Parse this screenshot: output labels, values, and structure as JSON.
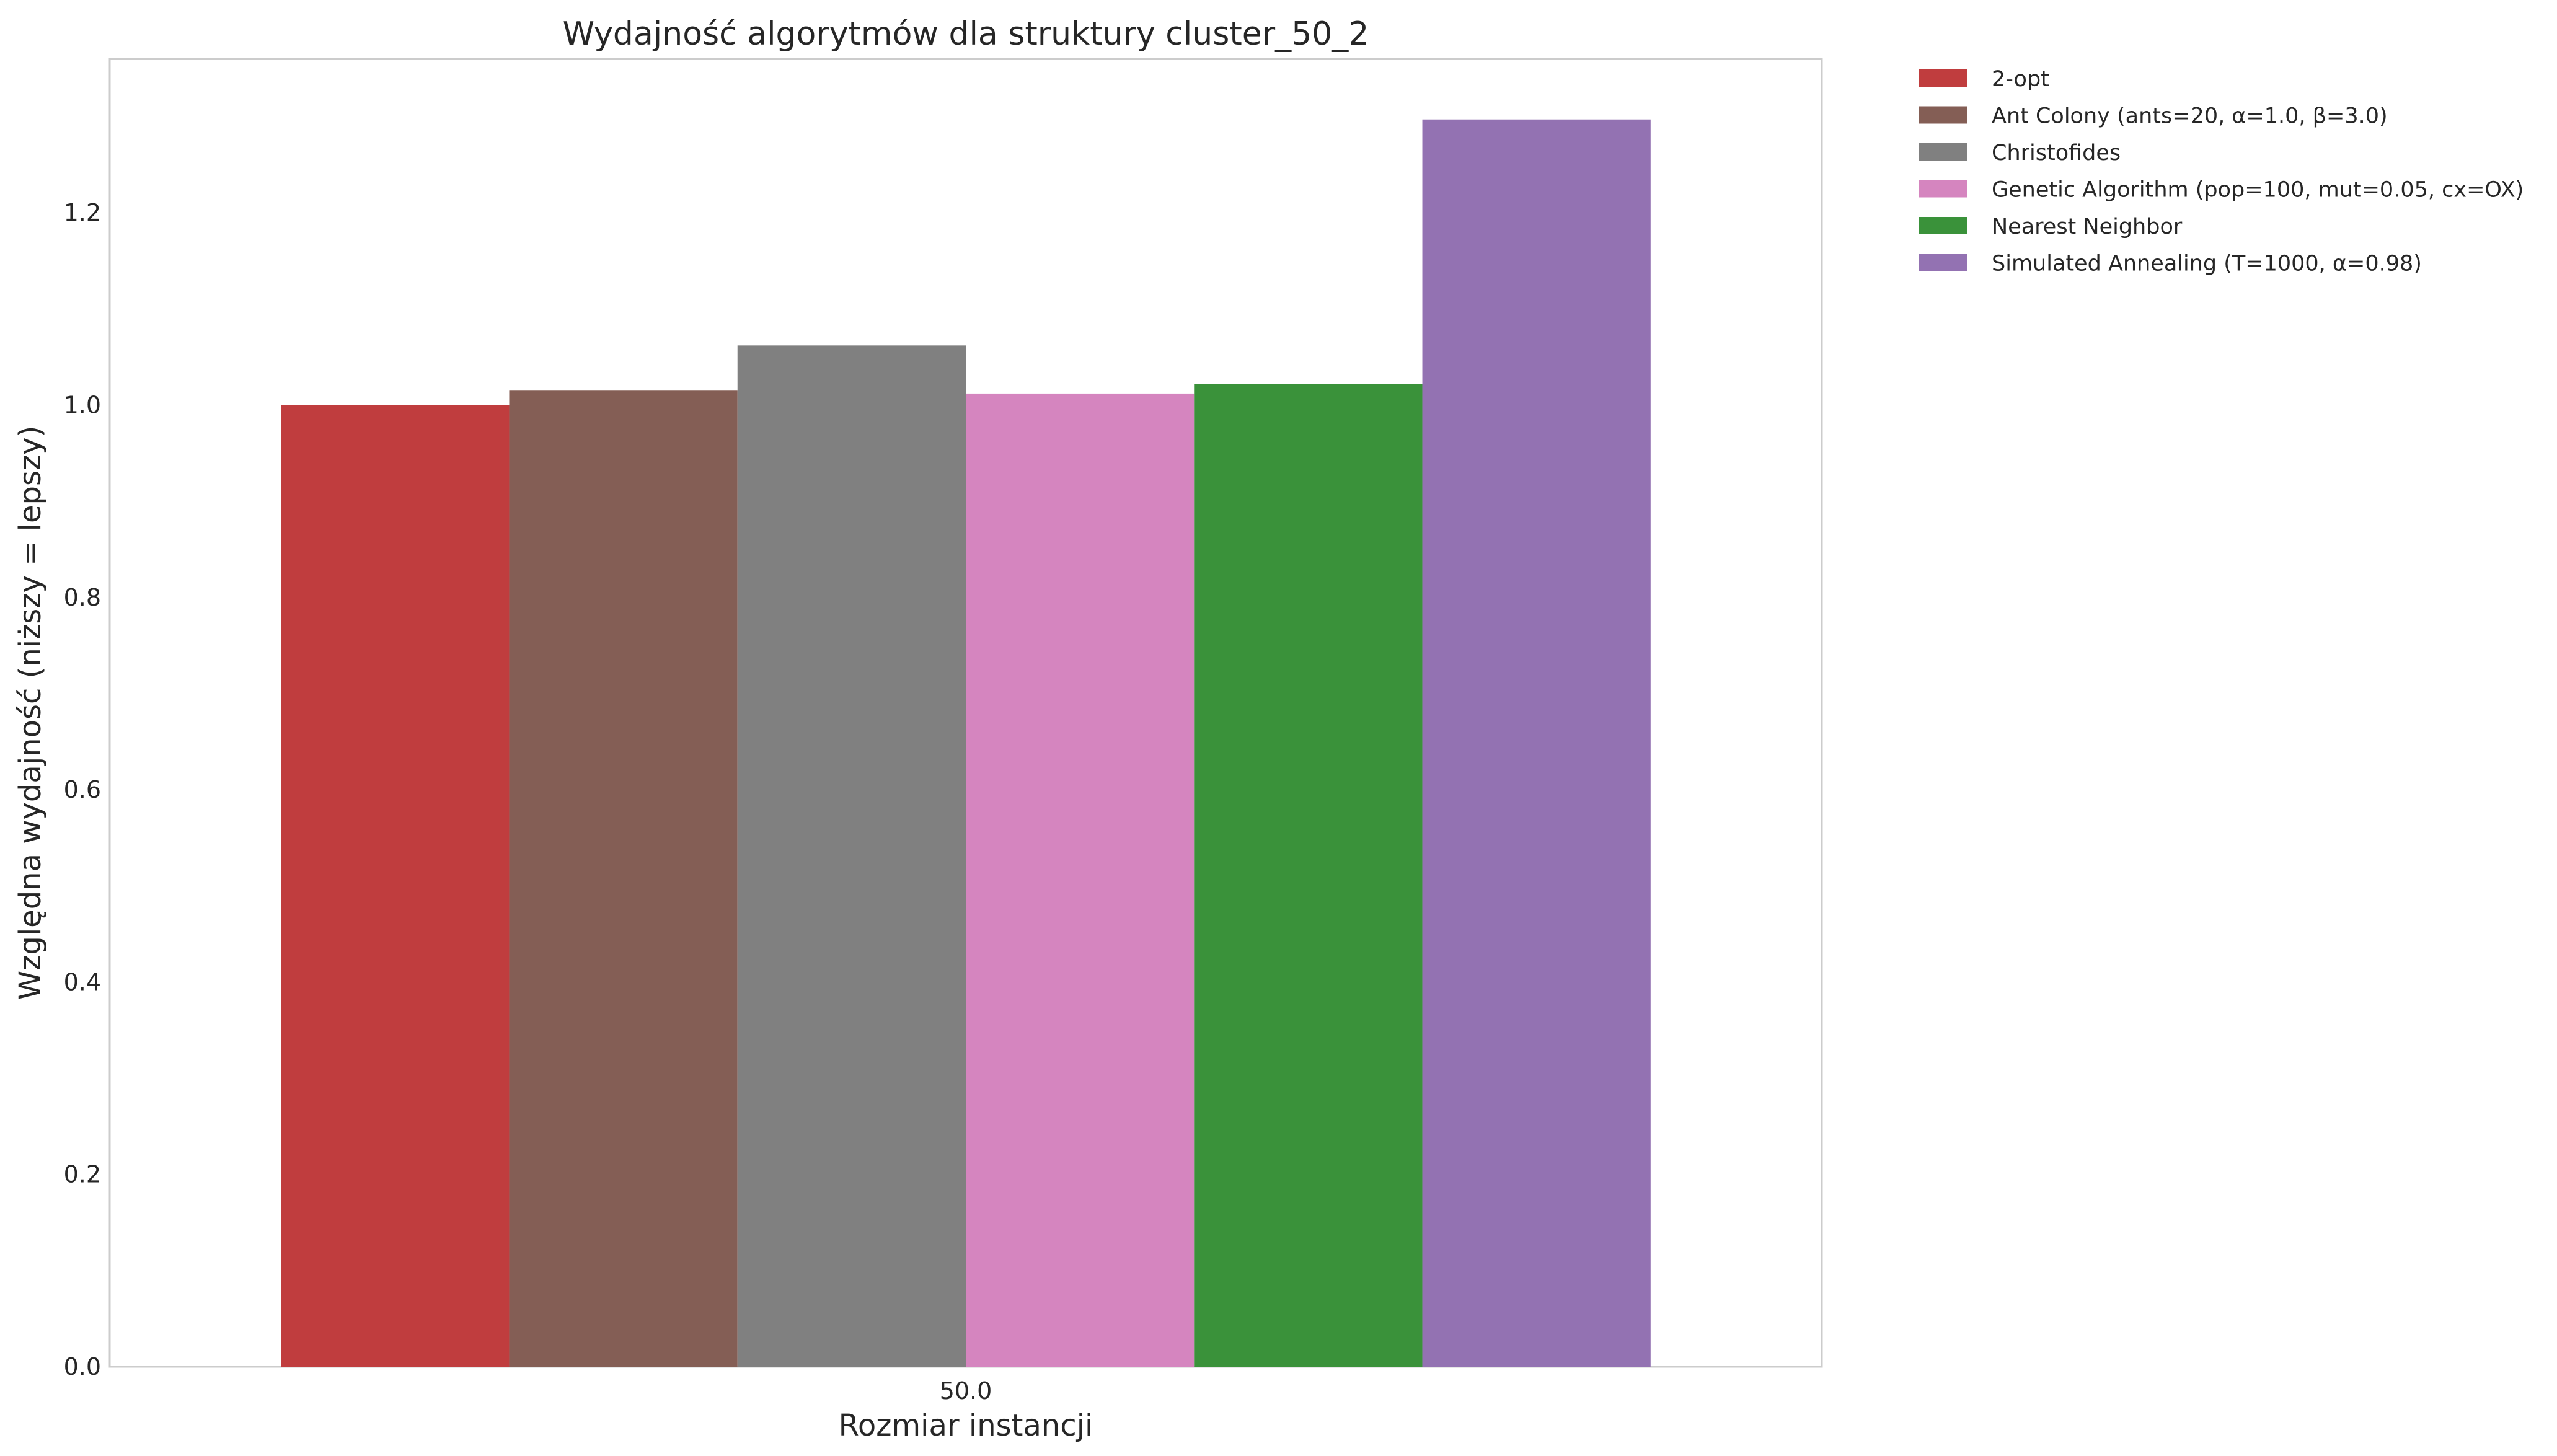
{
  "chart_data": {
    "type": "bar",
    "title": "Wydajność algorytmów dla struktury cluster_50_2",
    "xlabel": "Rozmiar instancji",
    "ylabel": "Względna wydajność (niższy = lepszy)",
    "categories": [
      "50.0"
    ],
    "ylim": [
      0,
      1.36
    ],
    "yticks": [
      "0.0",
      "0.2",
      "0.4",
      "0.6",
      "0.8",
      "1.0",
      "1.2"
    ],
    "grid": false,
    "legend_position": "outside-top-right",
    "series": [
      {
        "name": "2-opt",
        "values": [
          1.0
        ],
        "color": "#c03d3e"
      },
      {
        "name": "Ant Colony (ants=20, α=1.0, β=3.0)",
        "values": [
          1.015
        ],
        "color": "#845e55"
      },
      {
        "name": "Christofides",
        "values": [
          1.062
        ],
        "color": "#808080"
      },
      {
        "name": "Genetic Algorithm (pop=100, mut=0.05, cx=OX)",
        "values": [
          1.012
        ],
        "color": "#d585bf"
      },
      {
        "name": "Nearest Neighbor",
        "values": [
          1.022
        ],
        "color": "#3a923a"
      },
      {
        "name": "Simulated Annealing (T=1000, α=0.98)",
        "values": [
          1.297
        ],
        "color": "#9372b2"
      }
    ]
  }
}
